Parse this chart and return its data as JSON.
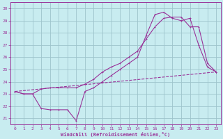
{
  "xlabel": "Windchill (Refroidissement éolien,°C)",
  "bg_color": "#c8ecf0",
  "grid_color": "#9ec4cc",
  "line_color": "#993399",
  "xlim": [
    -0.5,
    23.5
  ],
  "ylim": [
    20.5,
    30.5
  ],
  "yticks": [
    21,
    22,
    23,
    24,
    25,
    26,
    27,
    28,
    29,
    30
  ],
  "xticks": [
    0,
    1,
    2,
    3,
    4,
    5,
    6,
    7,
    8,
    9,
    10,
    11,
    12,
    13,
    14,
    15,
    16,
    17,
    18,
    19,
    20,
    21,
    22,
    23
  ],
  "line1_x": [
    0,
    1,
    2,
    3,
    4,
    5,
    6,
    7,
    8,
    9,
    10,
    11,
    12,
    13,
    14,
    15,
    16,
    17,
    18,
    19,
    20,
    21,
    22,
    23
  ],
  "line1_y": [
    23.2,
    23.0,
    23.0,
    23.4,
    23.5,
    23.5,
    23.5,
    23.5,
    23.8,
    24.2,
    24.8,
    25.2,
    25.5,
    26.0,
    26.5,
    27.5,
    28.5,
    29.2,
    29.3,
    29.3,
    28.5,
    28.5,
    25.5,
    24.8
  ],
  "line2_x": [
    0,
    1,
    2,
    3,
    4,
    5,
    6,
    7,
    8,
    9,
    10,
    11,
    12,
    13,
    14,
    15,
    16,
    17,
    18,
    19,
    20,
    21,
    22,
    23
  ],
  "line2_y": [
    23.2,
    23.0,
    23.0,
    21.8,
    21.7,
    21.7,
    21.7,
    20.8,
    23.2,
    23.5,
    24.0,
    24.5,
    25.0,
    25.5,
    26.0,
    27.8,
    29.5,
    29.7,
    29.2,
    29.0,
    29.2,
    27.0,
    25.2,
    24.8
  ],
  "line3_x": [
    0,
    23
  ],
  "line3_y": [
    23.2,
    24.8
  ]
}
